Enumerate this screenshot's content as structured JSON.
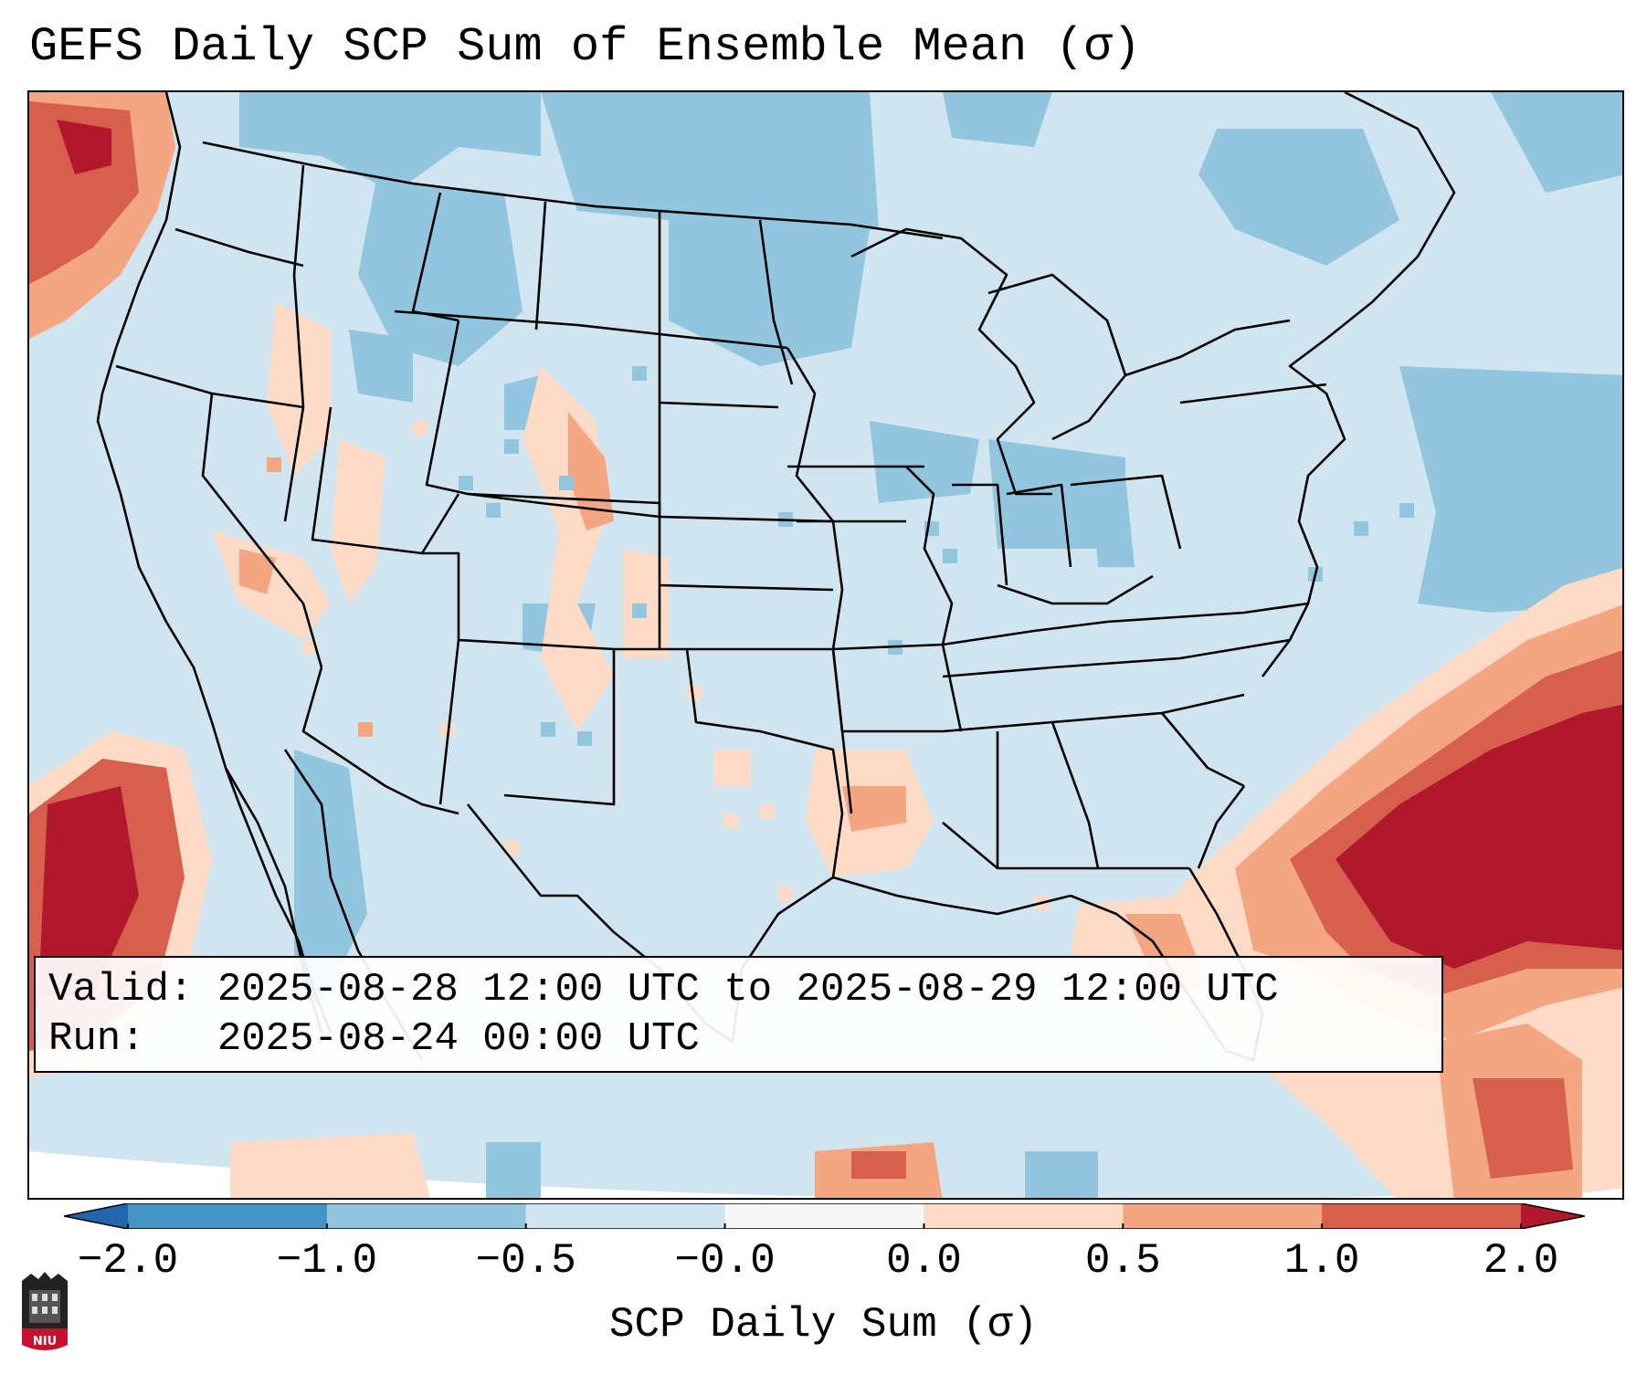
{
  "title": "GEFS Daily SCP Sum of Ensemble Mean (σ)",
  "info": {
    "valid_label": "Valid:",
    "valid_value": "2025-08-28 12:00 UTC to 2025-08-29 12:00 UTC",
    "run_label": "Run:",
    "run_value": "2025-08-24 00:00 UTC"
  },
  "colorbar": {
    "label": "SCP Daily Sum (σ)",
    "ticks": [
      "−2.0",
      "−1.0",
      "−0.5",
      "−0.0",
      "0.0",
      "0.5",
      "1.0",
      "2.0"
    ],
    "bins": [
      {
        "from": -2.0,
        "to": -1.0,
        "color": "#4393c3"
      },
      {
        "from": -1.0,
        "to": -0.5,
        "color": "#92c5de"
      },
      {
        "from": -0.5,
        "to": -0.0,
        "color": "#d1e5f0"
      },
      {
        "from": -0.0,
        "to": 0.0,
        "color": "#f7f7f7"
      },
      {
        "from": 0.0,
        "to": 0.5,
        "color": "#fddbc7"
      },
      {
        "from": 0.5,
        "to": 1.0,
        "color": "#f4a582"
      },
      {
        "from": 1.0,
        "to": 2.0,
        "color": "#d6604d"
      }
    ],
    "under_color": "#2166ac",
    "over_color": "#b2182b"
  },
  "map": {
    "region": "Contiguous United States",
    "field": "GEFS ensemble mean daily SCP sum, standardized anomaly"
  },
  "logo_text": "NIU"
}
